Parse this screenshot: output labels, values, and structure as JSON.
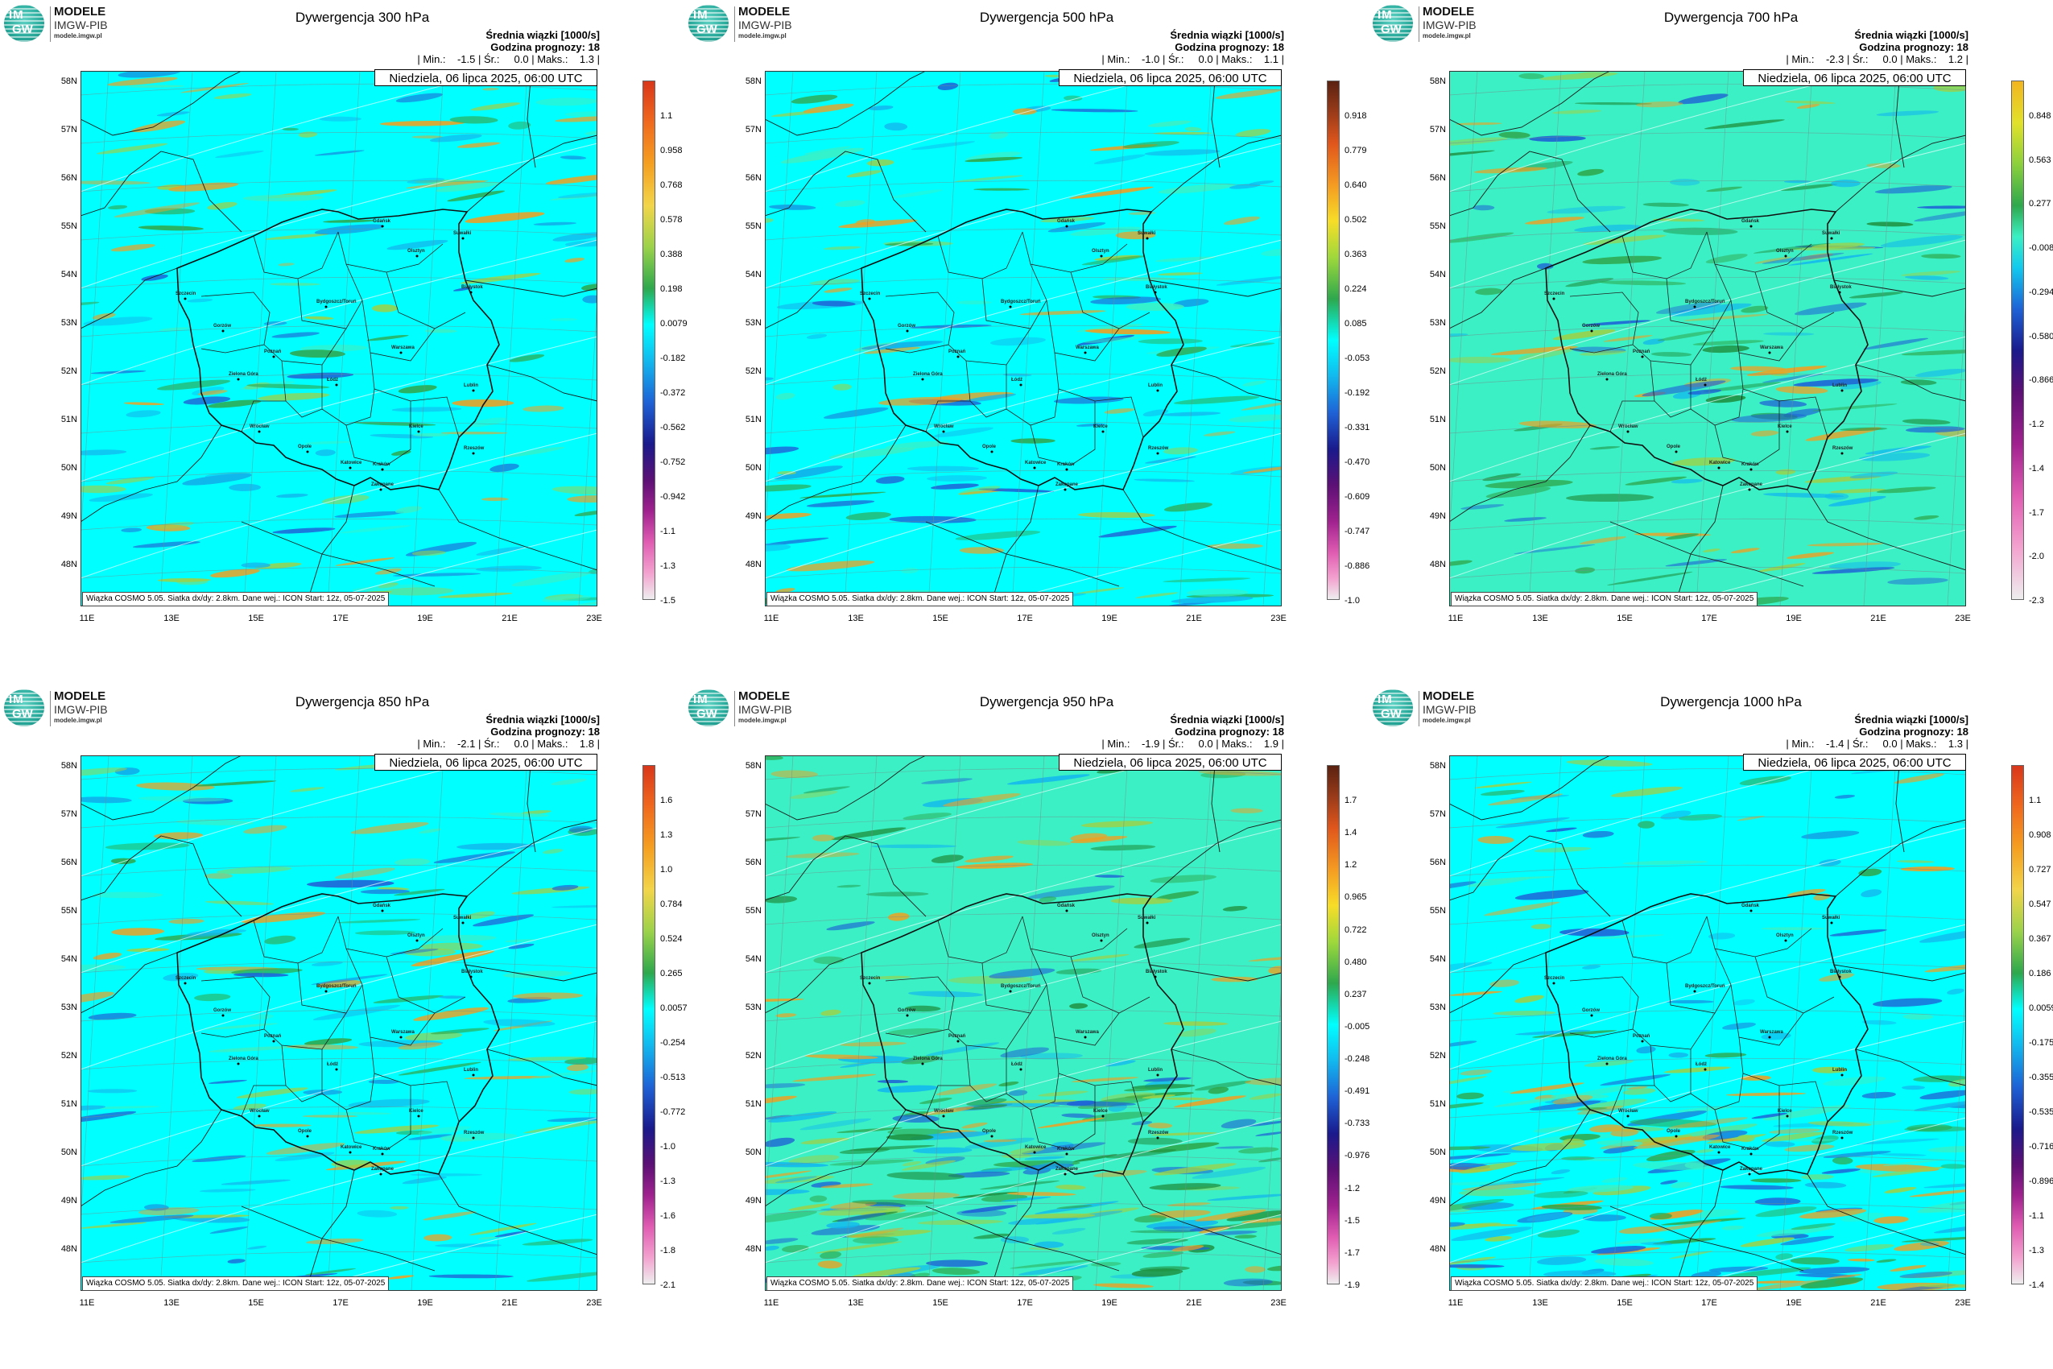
{
  "logo": {
    "text_top": "IM",
    "text_bottom": "GW",
    "name": "MODELE",
    "org": "IMGW-PIB",
    "url": "modele.imgw.pl"
  },
  "header": {
    "line1": "Średnia wiązki [1000/s]",
    "line2": "Godzina prognozy: 18"
  },
  "date_label": "Niedziela, 06 lipca 2025, 06:00 UTC",
  "footer": "Wiązka COSMO 5.05. Siatka dx/dy: 2.8km. Dane wej.: ICON Start: 12z, 05-07-2025",
  "lat_labels": [
    "58N",
    "57N",
    "56N",
    "55N",
    "54N",
    "53N",
    "52N",
    "51N",
    "50N",
    "49N",
    "48N"
  ],
  "lon_labels": [
    "11E",
    "13E",
    "15E",
    "17E",
    "19E",
    "21E",
    "23E"
  ],
  "cities": [
    "Gdańsk",
    "Olsztyn",
    "Suwałki",
    "Szczecin",
    "Bydgoszcz/Toruń",
    "Białystok",
    "Gorzów",
    "Poznań",
    "Warszawa",
    "Zielona Góra",
    "Łódź",
    "Lublin",
    "Wrocław",
    "Kielce",
    "Opole",
    "Rzeszów",
    "Katowice",
    "Kraków",
    "Zakopane"
  ],
  "colors": {
    "base_a": "#00ffff",
    "base_b": "#3bf0c4",
    "border": "#1a1a1a"
  },
  "panels": [
    {
      "title": "Dywergencja 300 hPa",
      "stats": "| Min.:    -1.5 | Śr.:     0.0 | Maks.:    1.3 |",
      "palette": "warm",
      "base": "base_a",
      "ticks": [
        "1.1",
        "0.958",
        "0.768",
        "0.578",
        "0.388",
        "0.198",
        "0.0079",
        "-0.182",
        "-0.372",
        "-0.562",
        "-0.752",
        "-0.942",
        "-1.1",
        "-1.3",
        "-1.5"
      ]
    },
    {
      "title": "Dywergencja 500 hPa",
      "stats": "| Min.:    -1.0 | Śr.:     0.0 | Maks.:    1.1 |",
      "palette": "dark",
      "base": "base_a",
      "ticks": [
        "0.918",
        "0.779",
        "0.640",
        "0.502",
        "0.363",
        "0.224",
        "0.085",
        "-0.053",
        "-0.192",
        "-0.331",
        "-0.470",
        "-0.609",
        "-0.747",
        "-0.886",
        "-1.0"
      ]
    },
    {
      "title": "Dywergencja 700 hPa",
      "stats": "| Min.:    -2.3 | Śr.:     0.0 | Maks.:    1.2 |",
      "palette": "yellow",
      "base": "base_b",
      "ticks": [
        "0.848",
        "0.563",
        "0.277",
        "-0.008",
        "-0.294",
        "-0.580",
        "-0.866",
        "-1.2",
        "-1.4",
        "-1.7",
        "-2.0",
        "-2.3"
      ]
    },
    {
      "title": "Dywergencja 850 hPa",
      "stats": "| Min.:    -2.1 | Śr.:     0.0 | Maks.:    1.8 |",
      "palette": "warm",
      "base": "base_a",
      "ticks": [
        "1.6",
        "1.3",
        "1.0",
        "0.784",
        "0.524",
        "0.265",
        "0.0057",
        "-0.254",
        "-0.513",
        "-0.772",
        "-1.0",
        "-1.3",
        "-1.6",
        "-1.8",
        "-2.1"
      ]
    },
    {
      "title": "Dywergencja 950 hPa",
      "stats": "| Min.:    -1.9 | Śr.:     0.0 | Maks.:    1.9 |",
      "palette": "dark",
      "base": "base_b",
      "ticks": [
        "1.7",
        "1.4",
        "1.2",
        "0.965",
        "0.722",
        "0.480",
        "0.237",
        "-0.005",
        "-0.248",
        "-0.491",
        "-0.733",
        "-0.976",
        "-1.2",
        "-1.5",
        "-1.7",
        "-1.9"
      ]
    },
    {
      "title": "Dywergencja 1000 hPa",
      "stats": "| Min.:    -1.4 | Śr.:     0.0 | Maks.:    1.3 |",
      "palette": "warm",
      "base": "base_a",
      "ticks": [
        "1.1",
        "0.908",
        "0.727",
        "0.547",
        "0.367",
        "0.186",
        "0.0059",
        "-0.175",
        "-0.355",
        "-0.535",
        "-0.716",
        "-0.896",
        "-1.1",
        "-1.3",
        "-1.4"
      ]
    }
  ]
}
